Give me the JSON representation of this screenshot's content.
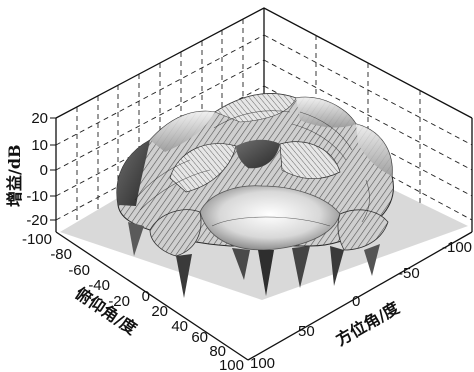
{
  "chart_data": {
    "type": "surface3d",
    "title": "",
    "zlabel": "增益/dB",
    "xlabel": "俯仰角/度",
    "ylabel": "方位角/度",
    "z_ticks": [
      "20",
      "10",
      "0",
      "-10",
      "-20"
    ],
    "x_ticks": [
      "-100",
      "-80",
      "-60",
      "-40",
      "-20",
      "0",
      "20",
      "40",
      "60",
      "80",
      "100"
    ],
    "y_ticks": [
      "-100",
      "-50",
      "0",
      "50",
      "100"
    ],
    "zlim": [
      -20,
      20
    ],
    "xlim": [
      -100,
      100
    ],
    "ylim": [
      -100,
      100
    ],
    "grid": true,
    "colormap": "gray",
    "surface_description_free": true
  }
}
